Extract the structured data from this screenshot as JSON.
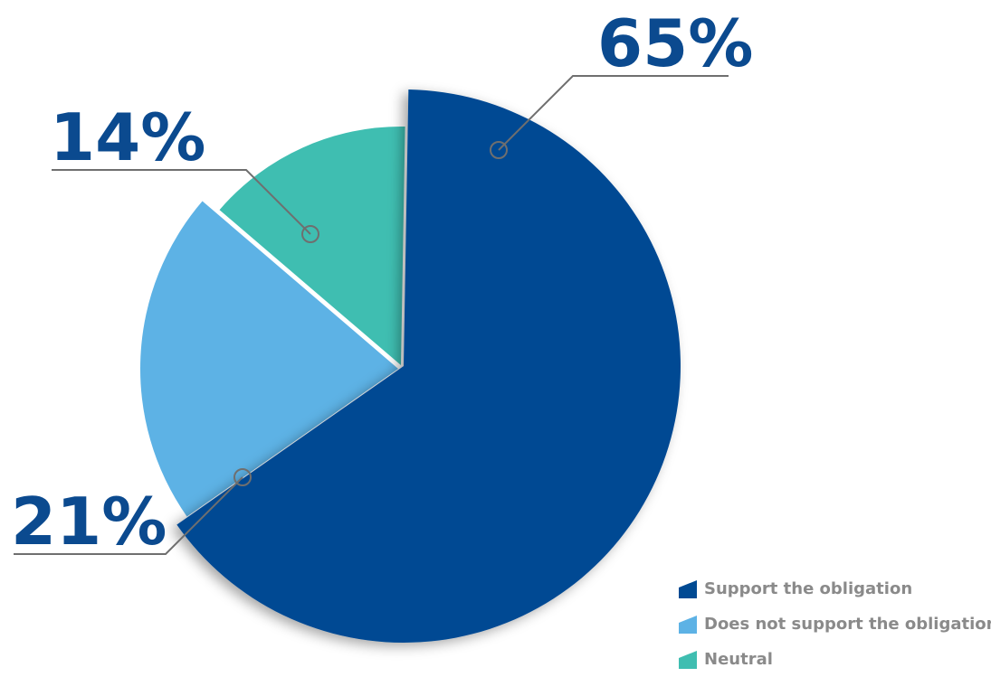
{
  "chart_data": {
    "type": "pie",
    "slices": [
      {
        "label": "Support the obligation",
        "value": 65,
        "value_label": "65%",
        "color": "#004a93"
      },
      {
        "label": "Does not support the obligation",
        "value": 21,
        "value_label": "21%",
        "color": "#5db2e5"
      },
      {
        "label": "Neutral",
        "value": 14,
        "value_label": "14%",
        "color": "#3fbeb1"
      }
    ],
    "legend_position": "bottom-right"
  }
}
